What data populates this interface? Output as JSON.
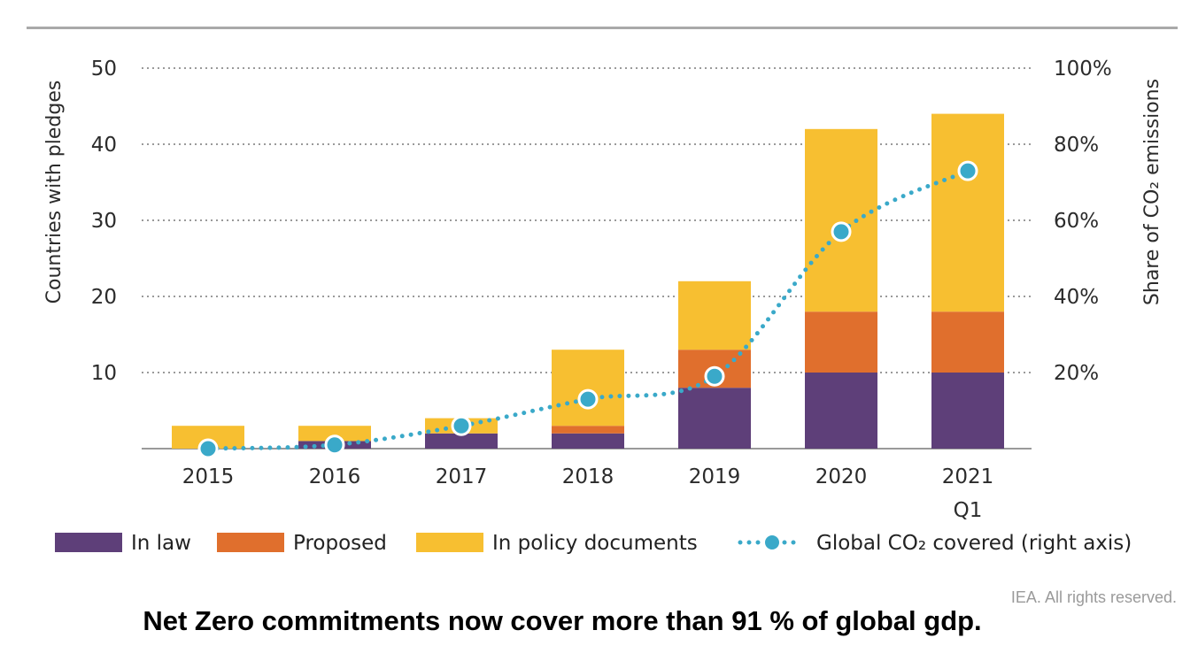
{
  "chart_data": {
    "type": "bar",
    "stacked": true,
    "categories": [
      "2015",
      "2016",
      "2017",
      "2018",
      "2019",
      "2020",
      "2021\nQ1"
    ],
    "series": [
      {
        "name": "In law",
        "values": [
          0,
          1,
          2,
          2,
          8,
          10,
          10
        ],
        "color": "#5e3f79"
      },
      {
        "name": "Proposed",
        "values": [
          0,
          0,
          0,
          1,
          5,
          8,
          8
        ],
        "color": "#e06f2d"
      },
      {
        "name": "In policy documents",
        "values": [
          3,
          2,
          2,
          10,
          9,
          24,
          26
        ],
        "color": "#f7bf31"
      }
    ],
    "line_series": {
      "name": "Global CO₂ covered (right axis)",
      "values": [
        0,
        1,
        6,
        13,
        19,
        57,
        73
      ],
      "color": "#3aa9c9",
      "axis": "right",
      "style": "dotted with markers"
    },
    "ylabel": "Countries with pledges",
    "ylabel_right": "Share of CO₂ emissions",
    "ylim": [
      0,
      50
    ],
    "ylim_right": [
      0,
      100
    ],
    "yticks": [
      "10",
      "20",
      "30",
      "40",
      "50"
    ],
    "yticks_right": [
      "20%",
      "40%",
      "60%",
      "80%",
      "100%"
    ],
    "grid": "dotted horizontal",
    "legend_position": "bottom"
  },
  "credit": "IEA. All rights reserved.",
  "caption": "Net Zero commitments now cover more than 91 % of global gdp."
}
